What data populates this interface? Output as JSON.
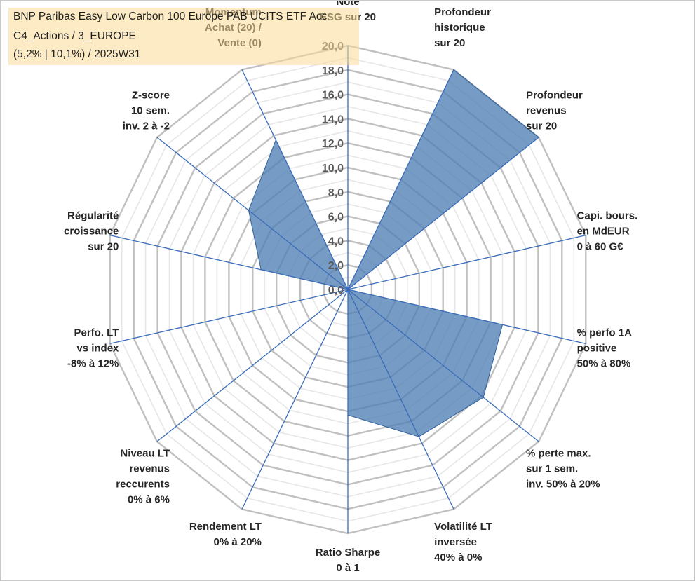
{
  "title_box": {
    "line1": "BNP Paribas Easy Low Carbon 100 Europe PAB UCITS ETF Acc",
    "line2": "C4_Actions / 3_EUROPE",
    "line3": "(5,2% | 10,1%) / 2025W31"
  },
  "colors": {
    "fill": "#4f7fb3",
    "stroke": "#2f5f9a",
    "spoke": "#3a6cb8",
    "ring": "#c0c0c0",
    "ring_minor": "#e6e6e6"
  },
  "chart_data": {
    "type": "radar",
    "title": "",
    "rmin": 0,
    "rmax": 20,
    "major_step": 2,
    "minor_step": 1,
    "tick_labels": [
      "0,0",
      "2,0",
      "4,0",
      "6,0",
      "8,0",
      "10,0",
      "12,0",
      "14,0",
      "16,0",
      "18,0",
      "20,0"
    ],
    "axes": [
      {
        "label": [
          "Note",
          "ESG sur 20"
        ],
        "value": 0
      },
      {
        "label": [
          "Profondeur",
          "historique",
          "sur 20"
        ],
        "value": 20
      },
      {
        "label": [
          "Profondeur",
          "revenus",
          "sur 20"
        ],
        "value": 20
      },
      {
        "label": [
          "Capi. bours.",
          "en MdEUR",
          "0 à 60 G€"
        ],
        "value": 0
      },
      {
        "label": [
          "% perfo 1A",
          "positive",
          "50% à 80%"
        ],
        "value": 13
      },
      {
        "label": [
          "% perte max.",
          "sur 1 sem.",
          "inv. 50% à 20%"
        ],
        "value": 14.2
      },
      {
        "label": [
          "Volatilité LT",
          "inversée",
          "40% à 0%"
        ],
        "value": 13.4
      },
      {
        "label": [
          "Ratio Sharpe",
          "0 à 1"
        ],
        "value": 10.3
      },
      {
        "label": [
          "Rendement LT",
          "0% à 20%"
        ],
        "value": 0
      },
      {
        "label": [
          "Niveau LT",
          "revenus",
          "reccurents",
          "0% à 6%"
        ],
        "value": 0
      },
      {
        "label": [
          "Perfo. LT",
          "vs index",
          "-8% à 12%"
        ],
        "value": 0
      },
      {
        "label": [
          "Régularité",
          "croissance",
          "sur 20"
        ],
        "value": 7.3
      },
      {
        "label": [
          "Z-score",
          "10 sem.",
          "inv. 2 à -2"
        ],
        "value": 10.4
      },
      {
        "label": [
          "Momentum",
          "Achat (20) /",
          "Vente (0)"
        ],
        "value": 13.6
      }
    ]
  }
}
